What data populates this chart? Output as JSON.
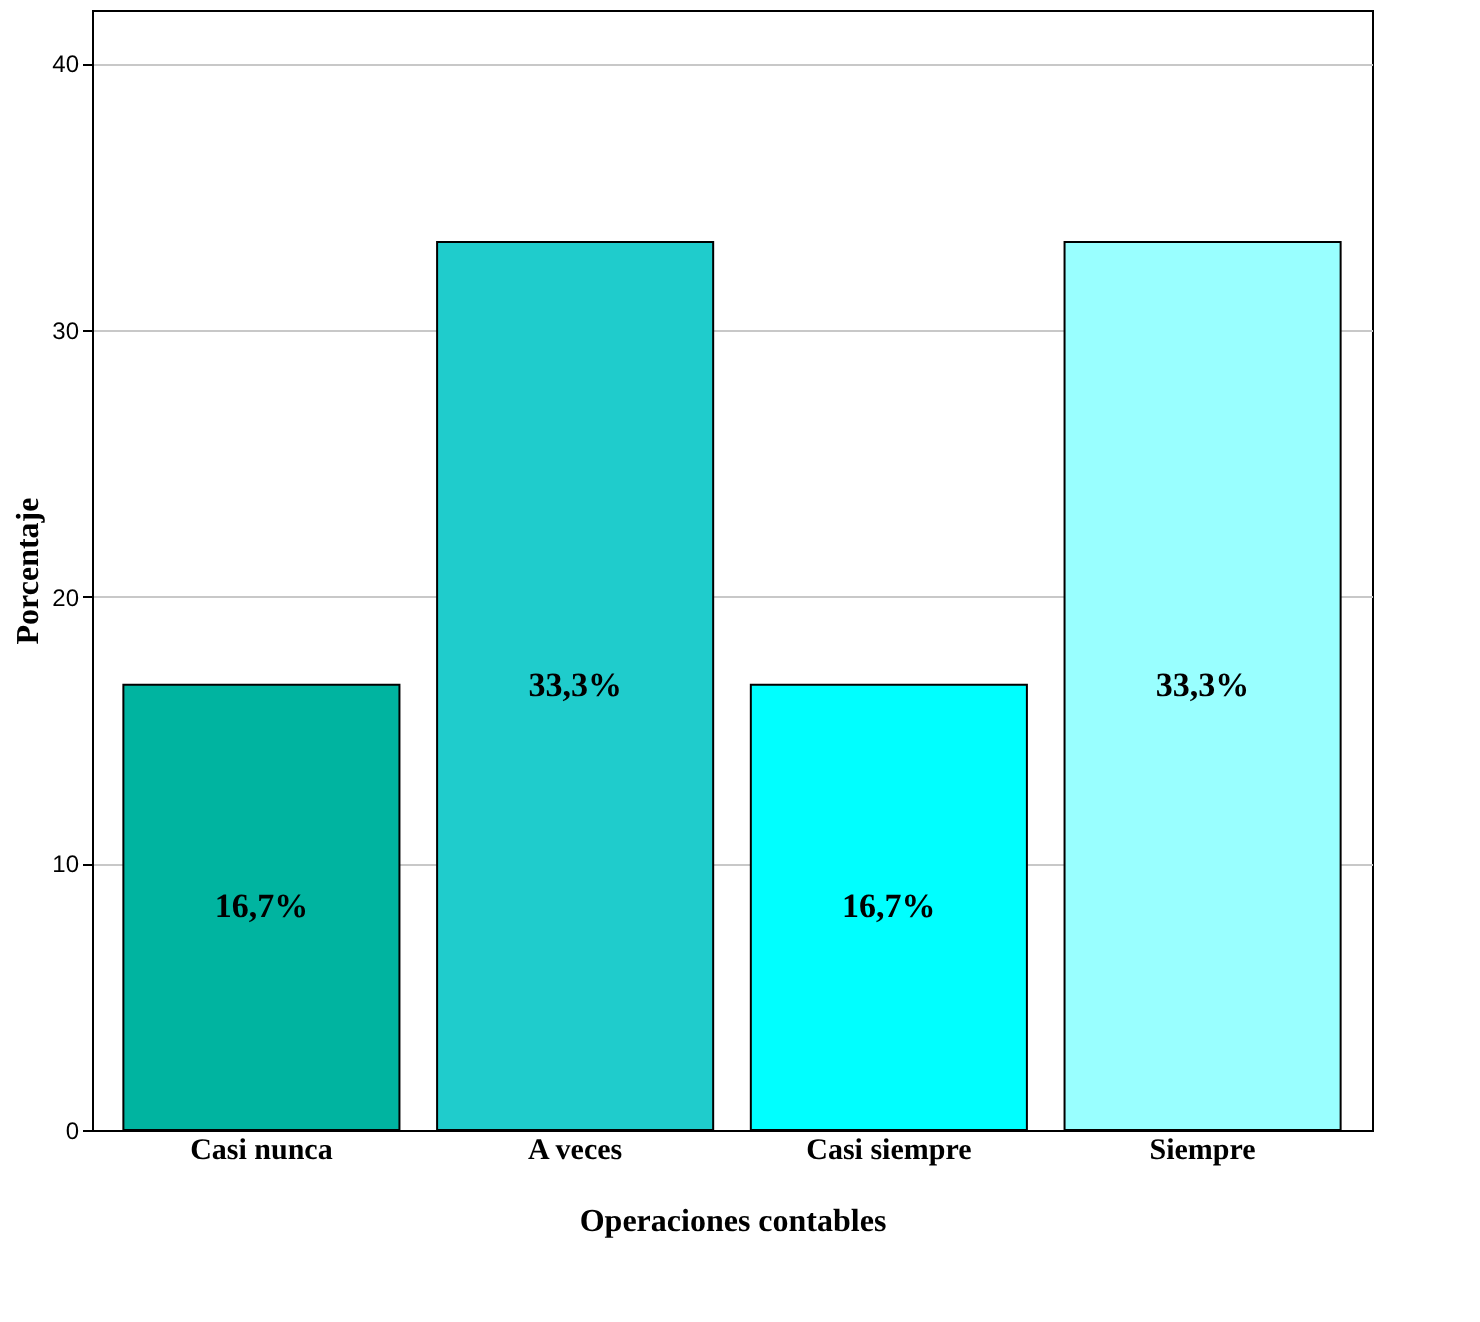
{
  "chart_data": {
    "type": "bar",
    "xlabel": "Operaciones contables",
    "ylabel": "Porcentaje",
    "categories": [
      "Casi nunca",
      "A veces",
      "Casi siempre",
      "Siempre"
    ],
    "values": [
      16.7,
      33.3,
      16.7,
      33.3
    ],
    "colors": [
      "#00b4a0",
      "#1fcccc",
      "#00ffff",
      "#99ffff"
    ],
    "value_labels": [
      "16,7%",
      "33,3%",
      "16,7%",
      "33,3%"
    ],
    "ylim": [
      0,
      42
    ],
    "yticks": [
      0,
      10,
      20,
      30,
      40
    ],
    "grid": "y"
  }
}
